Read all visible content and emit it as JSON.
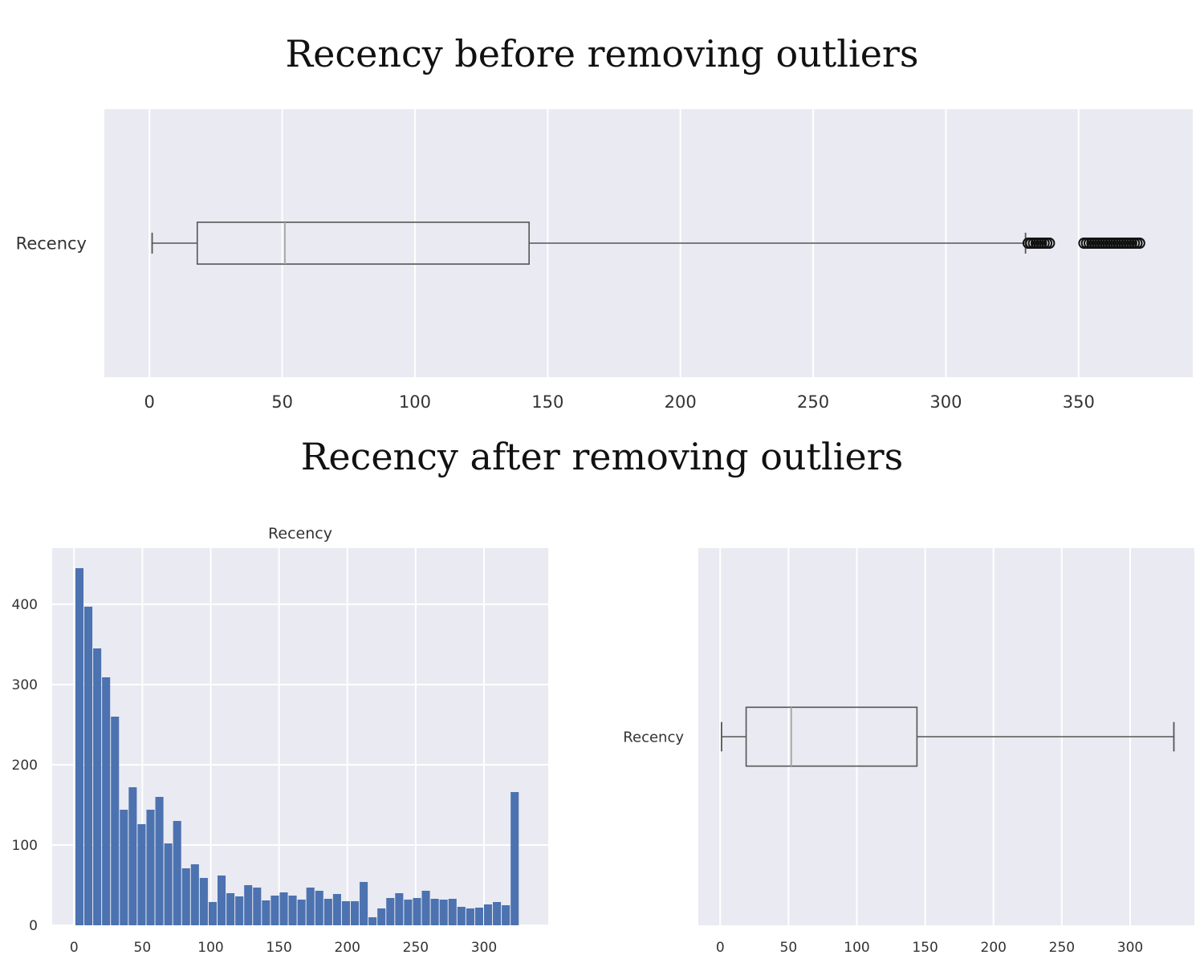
{
  "headings": {
    "top": "Recency before removing outliers",
    "bottom": "Recency after removing outliers"
  },
  "colors": {
    "panel_bg": "#eaeaf2",
    "grid": "#ffffff",
    "bar": "#4c72b0",
    "box_line": "#555555",
    "median_line": "#aaaaaa"
  },
  "chart_data": [
    {
      "type": "box",
      "orientation": "horizontal",
      "category": "Recency",
      "xlim": [
        -17,
        393
      ],
      "xticks": [
        0,
        50,
        100,
        150,
        200,
        250,
        300,
        350
      ],
      "whisker_low": 1,
      "q1": 18,
      "median": 51,
      "q3": 143,
      "whisker_high": 330,
      "outliers": [
        331,
        332,
        333,
        334,
        335,
        336,
        337,
        338,
        339,
        352,
        353,
        354,
        355,
        356,
        357,
        358,
        359,
        360,
        361,
        362,
        363,
        364,
        365,
        366,
        367,
        368,
        369,
        370,
        371,
        372,
        373
      ],
      "grid": true
    },
    {
      "type": "bar",
      "subtype": "histogram",
      "title": "Recency",
      "bin_width": 6.5,
      "bin_start": 1,
      "values": [
        445,
        397,
        345,
        309,
        260,
        144,
        172,
        126,
        144,
        160,
        102,
        130,
        71,
        76,
        59,
        29,
        62,
        40,
        36,
        50,
        47,
        31,
        37,
        41,
        37,
        32,
        47,
        43,
        33,
        39,
        30,
        30,
        54,
        10,
        21,
        34,
        40,
        32,
        34,
        43,
        33,
        32,
        33,
        23,
        21,
        22,
        26,
        29,
        25,
        166
      ],
      "xlim": [
        -16,
        347
      ],
      "ylim": [
        0,
        470
      ],
      "xticks": [
        0,
        50,
        100,
        150,
        200,
        250,
        300
      ],
      "yticks": [
        0,
        100,
        200,
        300,
        400
      ],
      "grid": true
    },
    {
      "type": "box",
      "orientation": "horizontal",
      "category": "Recency",
      "xlim": [
        -16,
        347
      ],
      "xticks": [
        0,
        50,
        100,
        150,
        200,
        250,
        300
      ],
      "whisker_low": 1,
      "q1": 19,
      "median": 52,
      "q3": 144,
      "whisker_high": 332,
      "outliers": [],
      "grid": true
    }
  ]
}
